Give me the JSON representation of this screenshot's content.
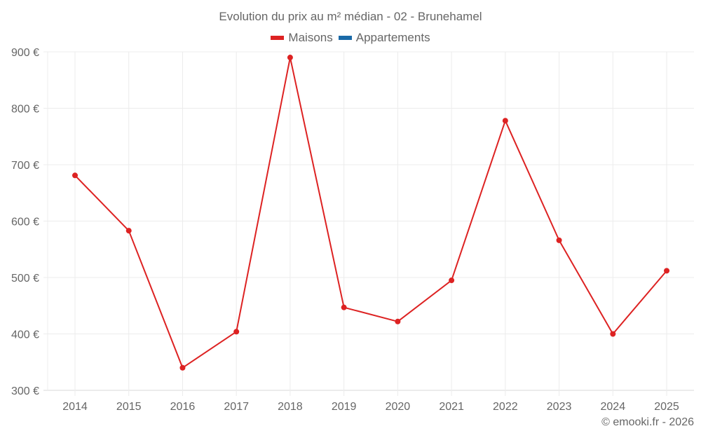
{
  "chart": {
    "title": "Evolution du prix au m² médian - 02 - Brunehamel",
    "credit": "© emooki.fr - 2026",
    "legend": [
      {
        "label": "Maisons",
        "color": "#dd2222"
      },
      {
        "label": "Appartements",
        "color": "#1a6aa8"
      }
    ]
  },
  "chart_data": {
    "type": "line",
    "title": "Evolution du prix au m² médian - 02 - Brunehamel",
    "xlabel": "",
    "ylabel": "",
    "categories": [
      "2014",
      "2015",
      "2016",
      "2017",
      "2018",
      "2019",
      "2020",
      "2021",
      "2022",
      "2023",
      "2024",
      "2025"
    ],
    "series": [
      {
        "name": "Maisons",
        "color": "#dd2222",
        "values": [
          681,
          583,
          340,
          404,
          890,
          447,
          422,
          495,
          778,
          566,
          400,
          512
        ]
      },
      {
        "name": "Appartements",
        "color": "#1a6aa8",
        "values": []
      }
    ],
    "ylim": [
      300,
      900
    ],
    "yticks": [
      300,
      400,
      500,
      600,
      700,
      800,
      900
    ],
    "ytick_labels": [
      "300 €",
      "400 €",
      "500 €",
      "600 €",
      "700 €",
      "800 €",
      "900 €"
    ],
    "grid": true,
    "legend_position": "top"
  }
}
